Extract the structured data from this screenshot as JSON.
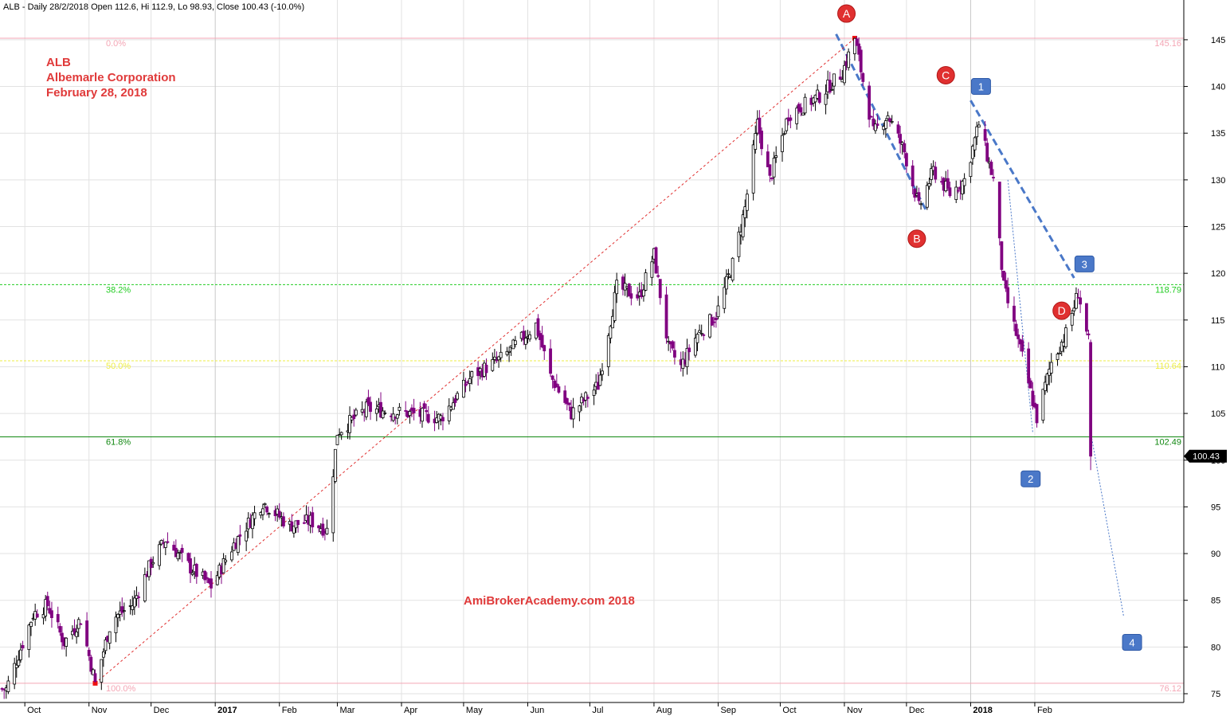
{
  "header": {
    "info": "ALB - Daily 28/2/2018 Open 112.6, Hi 112.9, Lo 98.93, Close 100.43 (-10.0%)"
  },
  "annotation": {
    "ticker": "ALB",
    "company": "Albemarle Corporation",
    "date": "February 28, 2018",
    "watermark": "AmiBrokerAcademy.com  2018"
  },
  "colors": {
    "bull_body": "#ffffff",
    "bull_edge": "#000000",
    "bear_body": "#800080",
    "fib_extreme": "#f4a6b5",
    "fib_382": "#22cc22",
    "fib_50": "#eeee44",
    "fib_618": "#118811",
    "wave_label": "#e03030",
    "count_label": "#4a78c8",
    "trend_dash": "#4a78c8",
    "rally_line": "#e03030",
    "text_red": "#e03a3a"
  },
  "chart_data": {
    "type": "candlestick",
    "title": "ALB - Daily 28/2/2018",
    "last": {
      "open": 112.6,
      "high": 112.9,
      "low": 98.93,
      "close": 100.43,
      "change_pct": -10.0
    },
    "y_axis": {
      "range": [
        74,
        149
      ],
      "ticks": [
        75,
        80,
        85,
        90,
        95,
        100,
        105,
        110,
        115,
        120,
        125,
        130,
        135,
        140,
        145
      ],
      "position": "right"
    },
    "x_axis": {
      "labels": [
        "Oct",
        "Nov",
        "Dec",
        "2017",
        "Feb",
        "Mar",
        "Apr",
        "May",
        "Jun",
        "Jul",
        "Aug",
        "Sep",
        "Oct",
        "Nov",
        "Dec",
        "2018",
        "Feb"
      ]
    },
    "price_keypoints": [
      [
        "2016-09-22",
        75.5
      ],
      [
        "2016-10-05",
        83.5
      ],
      [
        "2016-10-12",
        84.5
      ],
      [
        "2016-10-20",
        80.5
      ],
      [
        "2016-10-28",
        83.0
      ],
      [
        "2016-11-04",
        76.12
      ],
      [
        "2016-11-12",
        83.0
      ],
      [
        "2016-11-22",
        84.5
      ],
      [
        "2016-12-01",
        89.0
      ],
      [
        "2016-12-08",
        91.5
      ],
      [
        "2016-12-20",
        88.5
      ],
      [
        "2016-12-30",
        86.5
      ],
      [
        "2017-01-10",
        91.0
      ],
      [
        "2017-01-24",
        95.5
      ],
      [
        "2017-02-06",
        93.0
      ],
      [
        "2017-02-16",
        93.5
      ],
      [
        "2017-02-24",
        92.5
      ],
      [
        "2017-03-01",
        103.0
      ],
      [
        "2017-03-15",
        105.5
      ],
      [
        "2017-04-05",
        105.0
      ],
      [
        "2017-04-20",
        104.5
      ],
      [
        "2017-05-05",
        109.0
      ],
      [
        "2017-05-20",
        111.0
      ],
      [
        "2017-06-05",
        114.5
      ],
      [
        "2017-06-12",
        109.0
      ],
      [
        "2017-06-22",
        105.0
      ],
      [
        "2017-07-05",
        108.0
      ],
      [
        "2017-07-14",
        118.5
      ],
      [
        "2017-07-25",
        117.5
      ],
      [
        "2017-08-01",
        122.0
      ],
      [
        "2017-08-08",
        112.0
      ],
      [
        "2017-08-14",
        110.0
      ],
      [
        "2017-08-22",
        113.5
      ],
      [
        "2017-08-31",
        115.5
      ],
      [
        "2017-09-08",
        121.0
      ],
      [
        "2017-09-14",
        127.0
      ],
      [
        "2017-09-20",
        136.0
      ],
      [
        "2017-09-26",
        130.0
      ],
      [
        "2017-10-05",
        137.0
      ],
      [
        "2017-10-20",
        139.0
      ],
      [
        "2017-10-31",
        141.5
      ],
      [
        "2017-11-06",
        145.16
      ],
      [
        "2017-11-15",
        135.0
      ],
      [
        "2017-11-22",
        137.0
      ],
      [
        "2017-11-30",
        133.0
      ],
      [
        "2017-12-07",
        127.0
      ],
      [
        "2017-12-14",
        131.0
      ],
      [
        "2017-12-22",
        128.5
      ],
      [
        "2017-12-29",
        130.0
      ],
      [
        "2018-01-05",
        136.0
      ],
      [
        "2018-01-12",
        130.0
      ],
      [
        "2018-01-17",
        118.5
      ],
      [
        "2018-01-26",
        111.0
      ],
      [
        "2018-02-02",
        104.5
      ],
      [
        "2018-02-09",
        110.5
      ],
      [
        "2018-02-16",
        113.5
      ],
      [
        "2018-02-22",
        118.0
      ],
      [
        "2018-02-27",
        112.6
      ],
      [
        "2018-02-28",
        100.43
      ]
    ],
    "fibonacci": [
      {
        "label": "0.0%",
        "value": 145.16,
        "value_label": "145.16"
      },
      {
        "label": "38.2%",
        "value": 118.79,
        "value_label": "118.79"
      },
      {
        "label": "50.0%",
        "value": 110.64,
        "value_label": "110.64"
      },
      {
        "label": "61.8%",
        "value": 102.49,
        "value_label": "102.49"
      },
      {
        "label": "100.0%",
        "value": 76.12,
        "value_label": "76.12"
      }
    ],
    "last_price_tag": "100.43",
    "wave_labels": [
      {
        "text": "A",
        "date": "2017-11-02",
        "price": 147.8
      },
      {
        "text": "B",
        "date": "2017-12-06",
        "price": 123.7
      },
      {
        "text": "C",
        "date": "2017-12-20",
        "price": 141.2
      },
      {
        "text": "D",
        "date": "2018-02-14",
        "price": 116.0
      }
    ],
    "count_labels": [
      {
        "text": "1",
        "date": "2018-01-06",
        "price": 140.0
      },
      {
        "text": "2",
        "date": "2018-01-30",
        "price": 98.0
      },
      {
        "text": "3",
        "date": "2018-02-25",
        "price": 121.0
      },
      {
        "text": "4",
        "date": "2018-03-20",
        "price": 80.5
      }
    ],
    "trendlines": [
      {
        "style": "dashed-thick",
        "from": [
          "2017-10-28",
          145.6
        ],
        "to": [
          "2017-12-11",
          126.5
        ]
      },
      {
        "style": "dashed-thick",
        "from": [
          "2018-01-01",
          138.5
        ],
        "to": [
          "2018-02-20",
          119.5
        ]
      },
      {
        "style": "dotted-thin",
        "from": [
          "2018-01-19",
          130.0
        ],
        "to": [
          "2018-01-31",
          103.0
        ]
      },
      {
        "style": "dotted-thin",
        "from": [
          "2018-02-28",
          103.0
        ],
        "to": [
          "2018-03-16",
          83.2
        ]
      },
      {
        "style": "dotted-red",
        "from": [
          "2016-11-04",
          76.12
        ],
        "to": [
          "2017-11-06",
          145.16
        ]
      }
    ]
  }
}
